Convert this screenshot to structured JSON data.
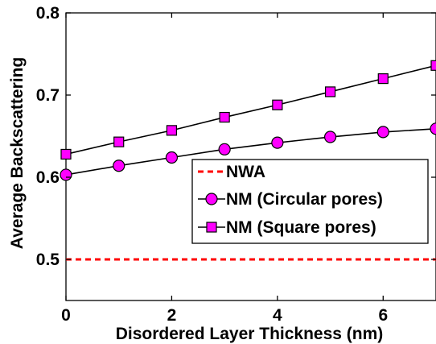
{
  "chart_data": {
    "type": "line",
    "xlabel": "Disordered Layer Thickness (nm)",
    "ylabel": "Average Backscattering",
    "xlim": [
      0,
      7
    ],
    "ylim": [
      0.45,
      0.8
    ],
    "x_ticks": [
      "0",
      "2",
      "4",
      "6"
    ],
    "x_tick_values": [
      0,
      2,
      4,
      6
    ],
    "y_ticks": [
      "0.5",
      "0.6",
      "0.7",
      "0.8"
    ],
    "y_tick_values": [
      0.5,
      0.6,
      0.7,
      0.8
    ],
    "grid": false,
    "legend_position": "lower-right",
    "series": [
      {
        "name": "NWA",
        "color": "#ff0000",
        "style": "dashed",
        "marker": "none",
        "x": [
          0,
          7
        ],
        "values": [
          0.5,
          0.5
        ]
      },
      {
        "name": "NM (Circular pores)",
        "color": "#000000",
        "marker_color": "#ff00ff",
        "style": "solid",
        "marker": "circle",
        "x": [
          0,
          1,
          2,
          3,
          4,
          5,
          6,
          7
        ],
        "values": [
          0.603,
          0.614,
          0.624,
          0.634,
          0.642,
          0.649,
          0.655,
          0.659
        ]
      },
      {
        "name": "NM (Square pores)",
        "color": "#000000",
        "marker_color": "#ff00ff",
        "style": "solid",
        "marker": "square",
        "x": [
          0,
          1,
          2,
          3,
          4,
          5,
          6,
          7
        ],
        "values": [
          0.628,
          0.643,
          0.657,
          0.673,
          0.688,
          0.704,
          0.72,
          0.736
        ]
      }
    ]
  }
}
